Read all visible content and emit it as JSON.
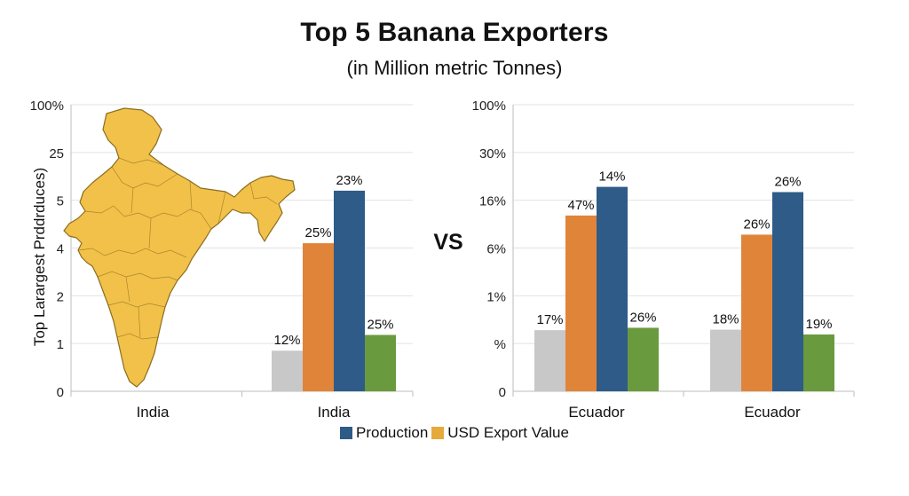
{
  "header": {
    "title": "Top 5 Banana Exporters",
    "subtitle": "(in Million metric Tonnes)"
  },
  "vs_label": "VS",
  "colors": {
    "gray": "#c8c8c8",
    "orange": "#e0843a",
    "blue": "#2e5b87",
    "green": "#6a9a3e",
    "map_fill": "#f2c14a",
    "map_stroke": "#8a6d1e",
    "grid": "#e2e2e2",
    "axis": "#bdbdbd"
  },
  "map_icon": "india-map-icon",
  "legend": [
    {
      "label": "Production",
      "color": "#2e5b87"
    },
    {
      "label": "USD Export Value",
      "color": "#e6a93a"
    }
  ],
  "chart_data": [
    {
      "type": "bar",
      "ylabel": "Top Larargest Prddrduces)",
      "yticks": [
        "100%",
        "25",
        "5",
        "4",
        "2",
        "1",
        "0"
      ],
      "y_tick_values": [
        6,
        5,
        4,
        3,
        2,
        1,
        0
      ],
      "ylim": [
        0,
        6
      ],
      "categories": [
        "India",
        "India"
      ],
      "groups": [
        {
          "category": "India",
          "bars": []
        },
        {
          "category": "India",
          "bars": [
            {
              "value": 0.85,
              "label": "12%",
              "color": "#c8c8c8"
            },
            {
              "value": 3.1,
              "label": "25%",
              "color": "#e0843a"
            },
            {
              "value": 4.2,
              "label": "23%",
              "color": "#2e5b87"
            },
            {
              "value": 1.18,
              "label": "25%",
              "color": "#6a9a3e"
            }
          ]
        }
      ]
    },
    {
      "type": "bar",
      "ylabel": "",
      "yticks": [
        "100%",
        "30%",
        "16%",
        "6%",
        "1%",
        "%",
        "0"
      ],
      "y_tick_values": [
        6,
        5,
        4,
        3,
        2,
        1,
        0
      ],
      "ylim": [
        0,
        6
      ],
      "categories": [
        "Ecuador",
        "Ecuador"
      ],
      "groups": [
        {
          "category": "Ecuador",
          "bars": [
            {
              "value": 1.28,
              "label": "17%",
              "color": "#c8c8c8"
            },
            {
              "value": 3.68,
              "label": "47%",
              "color": "#e0843a"
            },
            {
              "value": 4.28,
              "label": "14%",
              "color": "#2e5b87"
            },
            {
              "value": 1.33,
              "label": "26%",
              "color": "#6a9a3e"
            }
          ]
        },
        {
          "category": "Ecuador",
          "bars": [
            {
              "value": 1.29,
              "label": "18%",
              "color": "#c8c8c8"
            },
            {
              "value": 3.28,
              "label": "26%",
              "color": "#e0843a"
            },
            {
              "value": 4.17,
              "label": "26%",
              "color": "#2e5b87"
            },
            {
              "value": 1.19,
              "label": "19%",
              "color": "#6a9a3e"
            }
          ]
        }
      ]
    }
  ]
}
